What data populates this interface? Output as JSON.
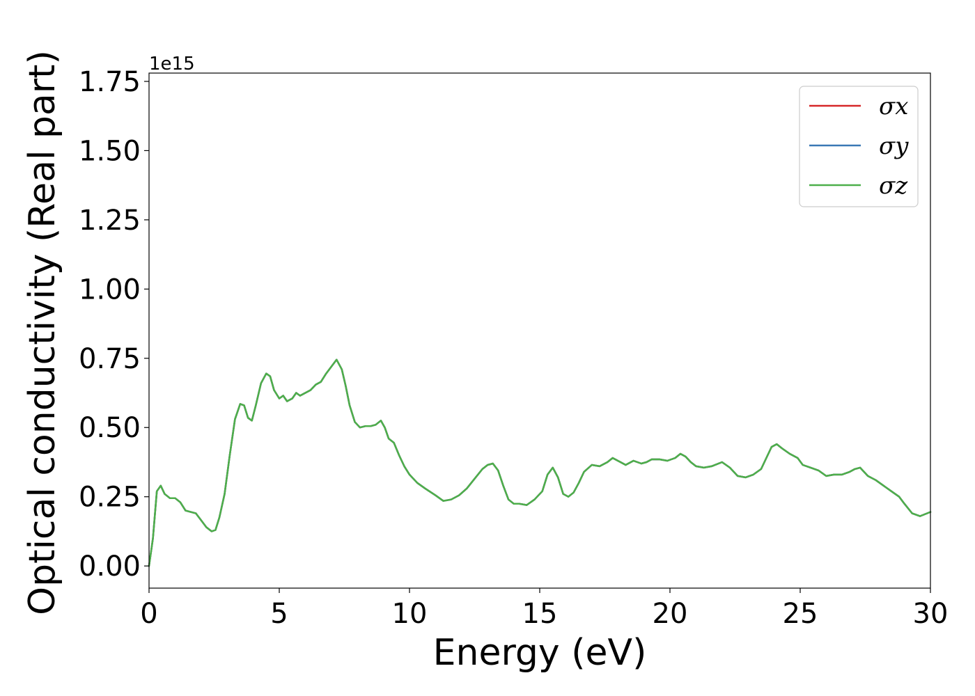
{
  "chart_data": {
    "type": "line",
    "xlabel": "Energy (eV)",
    "ylabel": "Optical conductivity (Real part)",
    "y_offset_label": "1e15",
    "xlim": [
      0,
      30
    ],
    "ylim": [
      -0.08,
      1.78
    ],
    "y_scale_factor": 1000000000000000.0,
    "grid": false,
    "legend_position": "top-right",
    "xticks": [
      "0",
      "5",
      "10",
      "15",
      "20",
      "25",
      "30"
    ],
    "yticks": [
      "0.00",
      "0.25",
      "0.50",
      "0.75",
      "1.00",
      "1.25",
      "1.50",
      "1.75"
    ],
    "x": [
      0,
      0.15,
      0.3,
      0.45,
      0.6,
      0.8,
      1.0,
      1.2,
      1.4,
      1.6,
      1.8,
      2.0,
      2.2,
      2.4,
      2.55,
      2.7,
      2.9,
      3.1,
      3.3,
      3.5,
      3.65,
      3.8,
      3.95,
      4.1,
      4.3,
      4.5,
      4.65,
      4.8,
      5.0,
      5.15,
      5.3,
      5.5,
      5.65,
      5.8,
      6.0,
      6.2,
      6.4,
      6.6,
      6.8,
      7.0,
      7.2,
      7.4,
      7.55,
      7.7,
      7.9,
      8.1,
      8.3,
      8.5,
      8.7,
      8.9,
      9.05,
      9.2,
      9.4,
      9.6,
      9.8,
      10.0,
      10.3,
      10.6,
      11.0,
      11.3,
      11.6,
      11.9,
      12.2,
      12.5,
      12.8,
      13.0,
      13.2,
      13.4,
      13.6,
      13.8,
      14.0,
      14.2,
      14.5,
      14.8,
      15.1,
      15.3,
      15.5,
      15.7,
      15.9,
      16.1,
      16.3,
      16.5,
      16.7,
      17.0,
      17.3,
      17.6,
      17.8,
      18.0,
      18.3,
      18.6,
      18.9,
      19.1,
      19.3,
      19.6,
      19.9,
      20.2,
      20.4,
      20.6,
      20.8,
      21.0,
      21.3,
      21.6,
      22.0,
      22.3,
      22.6,
      22.9,
      23.2,
      23.5,
      23.7,
      23.9,
      24.1,
      24.3,
      24.6,
      24.9,
      25.1,
      25.4,
      25.7,
      26.0,
      26.3,
      26.6,
      26.9,
      27.1,
      27.3,
      27.6,
      27.9,
      28.2,
      28.5,
      28.8,
      29.0,
      29.3,
      29.6,
      30.0
    ],
    "series": [
      {
        "name": "σx",
        "color": "#d62728",
        "values": [
          0.0,
          0.1,
          0.27,
          0.29,
          0.26,
          0.245,
          0.245,
          0.23,
          0.2,
          0.195,
          0.19,
          0.165,
          0.14,
          0.125,
          0.13,
          0.175,
          0.26,
          0.4,
          0.53,
          0.585,
          0.58,
          0.535,
          0.525,
          0.58,
          0.66,
          0.695,
          0.685,
          0.635,
          0.605,
          0.615,
          0.595,
          0.605,
          0.625,
          0.615,
          0.625,
          0.635,
          0.655,
          0.665,
          0.695,
          0.72,
          0.745,
          0.71,
          0.65,
          0.58,
          0.52,
          0.5,
          0.505,
          0.505,
          0.51,
          0.525,
          0.5,
          0.46,
          0.445,
          0.4,
          0.36,
          0.33,
          0.3,
          0.28,
          0.255,
          0.235,
          0.24,
          0.255,
          0.28,
          0.315,
          0.35,
          0.365,
          0.37,
          0.345,
          0.29,
          0.24,
          0.225,
          0.225,
          0.22,
          0.24,
          0.27,
          0.33,
          0.355,
          0.32,
          0.26,
          0.25,
          0.265,
          0.3,
          0.34,
          0.365,
          0.36,
          0.375,
          0.39,
          0.38,
          0.365,
          0.38,
          0.37,
          0.375,
          0.385,
          0.385,
          0.38,
          0.39,
          0.405,
          0.395,
          0.375,
          0.36,
          0.355,
          0.36,
          0.375,
          0.355,
          0.325,
          0.32,
          0.33,
          0.35,
          0.39,
          0.43,
          0.44,
          0.425,
          0.405,
          0.39,
          0.365,
          0.355,
          0.345,
          0.325,
          0.33,
          0.33,
          0.34,
          0.35,
          0.355,
          0.325,
          0.31,
          0.29,
          0.27,
          0.25,
          0.225,
          0.19,
          0.18,
          0.195
        ]
      },
      {
        "name": "σy",
        "color": "#3a78b5",
        "values": [
          0.0,
          0.1,
          0.27,
          0.29,
          0.26,
          0.245,
          0.245,
          0.23,
          0.2,
          0.195,
          0.19,
          0.165,
          0.14,
          0.125,
          0.13,
          0.175,
          0.26,
          0.4,
          0.53,
          0.585,
          0.58,
          0.535,
          0.525,
          0.58,
          0.66,
          0.695,
          0.685,
          0.635,
          0.605,
          0.615,
          0.595,
          0.605,
          0.625,
          0.615,
          0.625,
          0.635,
          0.655,
          0.665,
          0.695,
          0.72,
          0.745,
          0.71,
          0.65,
          0.58,
          0.52,
          0.5,
          0.505,
          0.505,
          0.51,
          0.525,
          0.5,
          0.46,
          0.445,
          0.4,
          0.36,
          0.33,
          0.3,
          0.28,
          0.255,
          0.235,
          0.24,
          0.255,
          0.28,
          0.315,
          0.35,
          0.365,
          0.37,
          0.345,
          0.29,
          0.24,
          0.225,
          0.225,
          0.22,
          0.24,
          0.27,
          0.33,
          0.355,
          0.32,
          0.26,
          0.25,
          0.265,
          0.3,
          0.34,
          0.365,
          0.36,
          0.375,
          0.39,
          0.38,
          0.365,
          0.38,
          0.37,
          0.375,
          0.385,
          0.385,
          0.38,
          0.39,
          0.405,
          0.395,
          0.375,
          0.36,
          0.355,
          0.36,
          0.375,
          0.355,
          0.325,
          0.32,
          0.33,
          0.35,
          0.39,
          0.43,
          0.44,
          0.425,
          0.405,
          0.39,
          0.365,
          0.355,
          0.345,
          0.325,
          0.33,
          0.33,
          0.34,
          0.35,
          0.355,
          0.325,
          0.31,
          0.29,
          0.27,
          0.25,
          0.225,
          0.19,
          0.18,
          0.195
        ]
      },
      {
        "name": "σz",
        "color": "#4daf4a",
        "values": [
          0.0,
          0.1,
          0.27,
          0.29,
          0.26,
          0.245,
          0.245,
          0.23,
          0.2,
          0.195,
          0.19,
          0.165,
          0.14,
          0.125,
          0.13,
          0.175,
          0.26,
          0.4,
          0.53,
          0.585,
          0.58,
          0.535,
          0.525,
          0.58,
          0.66,
          0.695,
          0.685,
          0.635,
          0.605,
          0.615,
          0.595,
          0.605,
          0.625,
          0.615,
          0.625,
          0.635,
          0.655,
          0.665,
          0.695,
          0.72,
          0.745,
          0.71,
          0.65,
          0.58,
          0.52,
          0.5,
          0.505,
          0.505,
          0.51,
          0.525,
          0.5,
          0.46,
          0.445,
          0.4,
          0.36,
          0.33,
          0.3,
          0.28,
          0.255,
          0.235,
          0.24,
          0.255,
          0.28,
          0.315,
          0.35,
          0.365,
          0.37,
          0.345,
          0.29,
          0.24,
          0.225,
          0.225,
          0.22,
          0.24,
          0.27,
          0.33,
          0.355,
          0.32,
          0.26,
          0.25,
          0.265,
          0.3,
          0.34,
          0.365,
          0.36,
          0.375,
          0.39,
          0.38,
          0.365,
          0.38,
          0.37,
          0.375,
          0.385,
          0.385,
          0.38,
          0.39,
          0.405,
          0.395,
          0.375,
          0.36,
          0.355,
          0.36,
          0.375,
          0.355,
          0.325,
          0.32,
          0.33,
          0.35,
          0.39,
          0.43,
          0.44,
          0.425,
          0.405,
          0.39,
          0.365,
          0.355,
          0.345,
          0.325,
          0.33,
          0.33,
          0.34,
          0.35,
          0.355,
          0.325,
          0.31,
          0.29,
          0.27,
          0.25,
          0.225,
          0.19,
          0.18,
          0.195
        ]
      }
    ]
  }
}
